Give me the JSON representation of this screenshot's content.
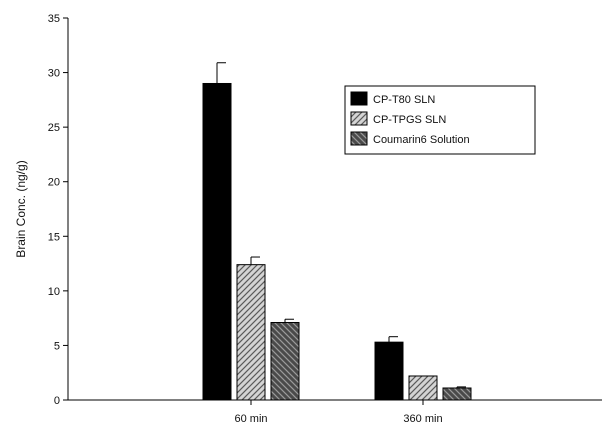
{
  "chart_data": {
    "type": "bar",
    "title": "",
    "xlabel": "",
    "ylabel": "Brain Conc. (ng/g)",
    "ylim": [
      0,
      35
    ],
    "yticks": [
      0,
      5,
      10,
      15,
      20,
      25,
      30,
      35
    ],
    "categories": [
      "60 min",
      "360 min"
    ],
    "grid": false,
    "legend_position": "top-right",
    "series": [
      {
        "name": "CP-T80 SLN",
        "values": [
          29.0,
          5.3
        ],
        "errors": [
          1.9,
          0.5
        ],
        "fill": "#000000",
        "pattern": "solid"
      },
      {
        "name": "CP-TPGS SLN",
        "values": [
          12.4,
          2.2
        ],
        "errors": [
          0.7,
          0.0
        ],
        "fill": "#c8c8c8",
        "pattern": "hatch-light"
      },
      {
        "name": "Coumarin6 Solution",
        "values": [
          7.1,
          1.1
        ],
        "errors": [
          0.3,
          0.1
        ],
        "fill": "#555555",
        "pattern": "hatch-dark"
      }
    ]
  }
}
